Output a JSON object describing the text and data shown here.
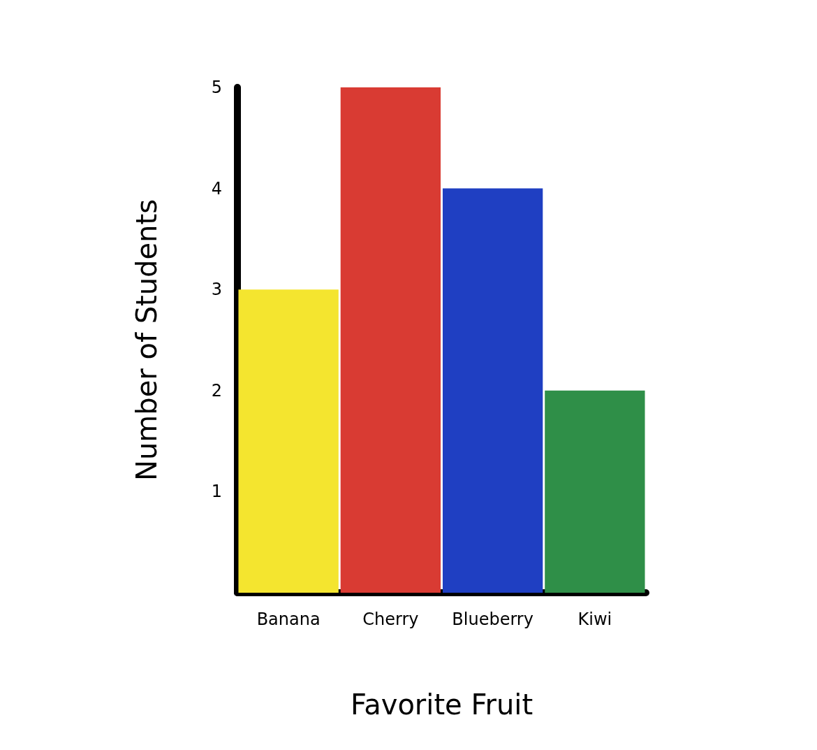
{
  "chart_data": {
    "type": "bar",
    "xlabel": "Favorite Fruit",
    "ylabel": "Number of Students",
    "categories": [
      "Banana",
      "Cherry",
      "Blueberry",
      "Kiwi"
    ],
    "values": [
      3,
      5,
      4,
      2
    ],
    "colors": [
      "#f4e52f",
      "#d93b33",
      "#1f3fc2",
      "#2f8f48"
    ],
    "ylim": [
      0,
      5
    ],
    "yticks": [
      1,
      2,
      3,
      4,
      5
    ],
    "grid": false
  }
}
